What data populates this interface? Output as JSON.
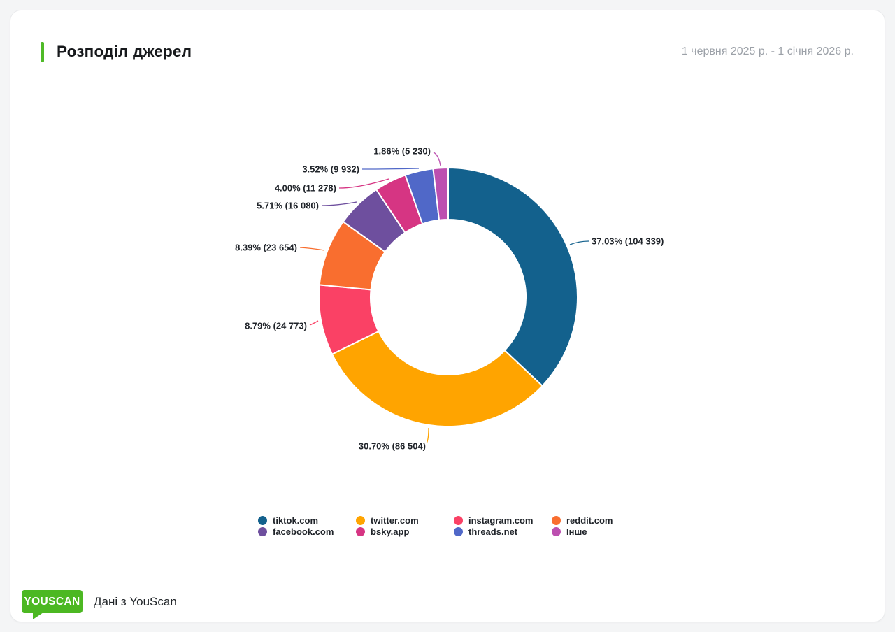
{
  "card": {
    "title": "Розподіл джерел",
    "date_range": "1 червня 2025 р. - 1 січня 2026 р."
  },
  "footer": {
    "logo_text": "YOUSCAN",
    "attribution": "Дані з YouScan"
  },
  "colors": {
    "accent_green": "#4fba28",
    "logo_green": "#4cb822",
    "title_text": "#17191c",
    "date_text": "#9ca1a8",
    "label_text": "#1f2329"
  },
  "chart_data": {
    "type": "pie",
    "donut": true,
    "start_angle": "top",
    "direction": "clockwise",
    "title": "Розподіл джерел",
    "legend_position": "bottom",
    "value_label_format": "percent (count)",
    "slices": [
      {
        "label": "tiktok.com",
        "percent": 37.03,
        "count": 104339,
        "display": "37.03% (104 339)",
        "color": "#13618d"
      },
      {
        "label": "twitter.com",
        "percent": 30.7,
        "count": 86504,
        "display": "30.70% (86 504)",
        "color": "#ffa400"
      },
      {
        "label": "instagram.com",
        "percent": 8.79,
        "count": 24773,
        "display": "8.79% (24 773)",
        "color": "#fa4165"
      },
      {
        "label": "reddit.com",
        "percent": 8.39,
        "count": 23654,
        "display": "8.39% (23 654)",
        "color": "#f96e2f"
      },
      {
        "label": "facebook.com",
        "percent": 5.71,
        "count": 16080,
        "display": "5.71% (16 080)",
        "color": "#6e4f9e"
      },
      {
        "label": "bsky.app",
        "percent": 4.0,
        "count": 11278,
        "display": "4.00% (11 278)",
        "color": "#d63583"
      },
      {
        "label": "threads.net",
        "percent": 3.52,
        "count": 9932,
        "display": "3.52% (9 932)",
        "color": "#5068c8"
      },
      {
        "label": "Інше",
        "percent": 1.86,
        "count": 5230,
        "display": "1.86% (5 230)",
        "color": "#bc4fb0"
      }
    ]
  }
}
